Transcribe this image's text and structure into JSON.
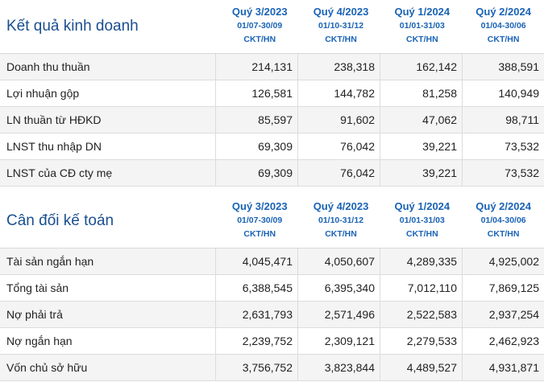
{
  "business": {
    "title": "Kết quả kinh doanh",
    "columns": [
      {
        "quarter": "Quý 3/2023",
        "dates": "01/07-30/09",
        "unit": "CKT/HN"
      },
      {
        "quarter": "Quý 4/2023",
        "dates": "01/10-31/12",
        "unit": "CKT/HN"
      },
      {
        "quarter": "Quý 1/2024",
        "dates": "01/01-31/03",
        "unit": "CKT/HN"
      },
      {
        "quarter": "Quý 2/2024",
        "dates": "01/04-30/06",
        "unit": "CKT/HN"
      }
    ],
    "rows": [
      {
        "label": "Doanh thu thuần",
        "values": [
          "214,131",
          "238,318",
          "162,142",
          "388,591"
        ]
      },
      {
        "label": "Lợi nhuận gộp",
        "values": [
          "126,581",
          "144,782",
          "81,258",
          "140,949"
        ]
      },
      {
        "label": "LN thuần từ HĐKD",
        "values": [
          "85,597",
          "91,602",
          "47,062",
          "98,711"
        ]
      },
      {
        "label": "LNST thu nhập DN",
        "values": [
          "69,309",
          "76,042",
          "39,221",
          "73,532"
        ]
      },
      {
        "label": "LNST của CĐ cty mẹ",
        "values": [
          "69,309",
          "76,042",
          "39,221",
          "73,532"
        ]
      }
    ]
  },
  "balance": {
    "title": "Cân đối kế toán",
    "columns": [
      {
        "quarter": "Quý 3/2023",
        "dates": "01/07-30/09",
        "unit": "CKT/HN"
      },
      {
        "quarter": "Quý 4/2023",
        "dates": "01/10-31/12",
        "unit": "CKT/HN"
      },
      {
        "quarter": "Quý 1/2024",
        "dates": "01/01-31/03",
        "unit": "CKT/HN"
      },
      {
        "quarter": "Quý 2/2024",
        "dates": "01/04-30/06",
        "unit": "CKT/HN"
      }
    ],
    "rows": [
      {
        "label": "Tài sản ngắn hạn",
        "values": [
          "4,045,471",
          "4,050,607",
          "4,289,335",
          "4,925,002"
        ]
      },
      {
        "label": "Tổng tài sản",
        "values": [
          "6,388,545",
          "6,395,340",
          "7,012,110",
          "7,869,125"
        ]
      },
      {
        "label": "Nợ phải trả",
        "values": [
          "2,631,793",
          "2,571,496",
          "2,522,583",
          "2,937,254"
        ]
      },
      {
        "label": "Nợ ngắn hạn",
        "values": [
          "2,239,752",
          "2,309,121",
          "2,279,533",
          "2,462,923"
        ]
      },
      {
        "label": "Vốn chủ sở hữu",
        "values": [
          "3,756,752",
          "3,823,844",
          "4,489,527",
          "4,931,871"
        ]
      }
    ]
  }
}
